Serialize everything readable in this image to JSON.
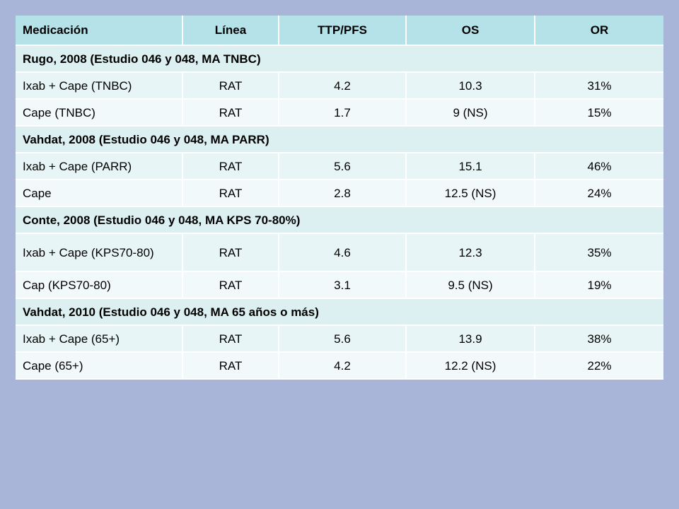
{
  "table": {
    "headers": [
      "Medicación",
      "Línea",
      "TTP/PFS",
      "OS",
      "OR"
    ],
    "groups": [
      {
        "title": "Rugo, 2008 (Estudio 046 y 048, MA TNBC)",
        "rows": [
          [
            "Ixab + Cape (TNBC)",
            "RAT",
            "4.2",
            "10.3",
            "31%"
          ],
          [
            "Cape (TNBC)",
            "RAT",
            "1.7",
            "9 (NS)",
            "15%"
          ]
        ]
      },
      {
        "title": "Vahdat, 2008 (Estudio 046 y 048, MA PARR)",
        "rows": [
          [
            "Ixab + Cape (PARR)",
            "RAT",
            "5.6",
            "15.1",
            "46%"
          ],
          [
            "Cape",
            "RAT",
            "2.8",
            "12.5 (NS)",
            "24%"
          ]
        ]
      },
      {
        "title": "Conte, 2008 (Estudio 046 y 048, MA KPS 70-80%)",
        "rows": [
          [
            "Ixab + Cape (KPS70-80)",
            "RAT",
            "4.6",
            "12.3",
            "35%"
          ],
          [
            "Cap (KPS70-80)",
            "RAT",
            "3.1",
            "9.5 (NS)",
            "19%"
          ]
        ]
      },
      {
        "title": "Vahdat, 2010 (Estudio 046 y 048, MA 65 años o más)",
        "rows": [
          [
            "Ixab + Cape (65+)",
            "RAT",
            "5.6",
            "13.9",
            "38%"
          ],
          [
            "Cape (65+)",
            "RAT",
            "4.2",
            "12.2 (NS)",
            "22%"
          ]
        ]
      }
    ]
  }
}
